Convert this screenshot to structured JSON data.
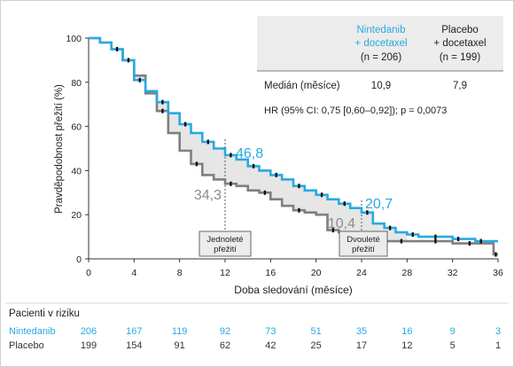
{
  "chart_data": {
    "type": "line",
    "title": "",
    "xlabel": "Doba sledování (měsíce)",
    "ylabel": "Pravděpodobnost přežití (%)",
    "xlim": [
      0,
      36
    ],
    "ylim": [
      0,
      100
    ],
    "xticks": [
      "0",
      "4",
      "8",
      "12",
      "16",
      "20",
      "24",
      "28",
      "32",
      "36"
    ],
    "yticks": [
      "0",
      "20",
      "40",
      "60",
      "80",
      "100"
    ],
    "series": [
      {
        "name": "Nintedanib + docetaxel",
        "color": "#29a9e1",
        "points": [
          [
            0,
            100
          ],
          [
            1,
            98
          ],
          [
            2,
            95
          ],
          [
            3,
            90
          ],
          [
            4,
            81
          ],
          [
            5,
            76
          ],
          [
            6,
            71
          ],
          [
            7,
            66
          ],
          [
            8,
            61
          ],
          [
            9,
            57
          ],
          [
            10,
            53
          ],
          [
            11,
            50
          ],
          [
            12,
            47
          ],
          [
            13,
            45
          ],
          [
            14,
            42
          ],
          [
            15,
            40
          ],
          [
            16,
            38
          ],
          [
            17,
            36
          ],
          [
            18,
            33
          ],
          [
            19,
            31
          ],
          [
            20,
            29
          ],
          [
            21,
            27
          ],
          [
            22,
            25
          ],
          [
            23,
            23
          ],
          [
            24,
            21
          ],
          [
            25,
            16
          ],
          [
            26,
            14
          ],
          [
            27,
            12
          ],
          [
            28,
            11
          ],
          [
            29,
            10
          ],
          [
            30,
            10
          ],
          [
            31,
            10
          ],
          [
            32,
            9
          ],
          [
            33,
            9
          ],
          [
            34,
            8
          ],
          [
            35,
            8
          ],
          [
            36,
            8
          ]
        ]
      },
      {
        "name": "Placebo",
        "color": "#7f7f7f",
        "points": [
          [
            0,
            100
          ],
          [
            1,
            98
          ],
          [
            2,
            95
          ],
          [
            3,
            90
          ],
          [
            4,
            83
          ],
          [
            5,
            75
          ],
          [
            6,
            67
          ],
          [
            7,
            57
          ],
          [
            8,
            49
          ],
          [
            9,
            43
          ],
          [
            10,
            38
          ],
          [
            11,
            36
          ],
          [
            12,
            34
          ],
          [
            13,
            33
          ],
          [
            14,
            31
          ],
          [
            15,
            30
          ],
          [
            16,
            27
          ],
          [
            17,
            24
          ],
          [
            18,
            22
          ],
          [
            19,
            21
          ],
          [
            20,
            20
          ],
          [
            21,
            13
          ],
          [
            22,
            12
          ],
          [
            23,
            11
          ],
          [
            24,
            10
          ],
          [
            25,
            9
          ],
          [
            26,
            8
          ],
          [
            27,
            8
          ],
          [
            28,
            8
          ],
          [
            29,
            8
          ],
          [
            30,
            8
          ],
          [
            31,
            8
          ],
          [
            32,
            7
          ],
          [
            33,
            7
          ],
          [
            34,
            7
          ],
          [
            35,
            7
          ],
          [
            35.6,
            2
          ],
          [
            36,
            2
          ]
        ]
      }
    ],
    "annotations": [
      {
        "text": "46,8",
        "x": 12,
        "y": 46.8,
        "series": 0
      },
      {
        "text": "34,3",
        "x": 12,
        "y": 34.3,
        "series": 1
      },
      {
        "text": "20,7",
        "x": 24,
        "y": 20.7,
        "series": 0
      },
      {
        "text": "10,4",
        "x": 24,
        "y": 10.4,
        "series": 1
      }
    ],
    "marker_boxes": [
      {
        "x": 12,
        "lines": [
          "Jednoleté",
          "přežití"
        ]
      },
      {
        "x": 24,
        "lines": [
          "Dvouleté",
          "přežití"
        ]
      }
    ]
  },
  "stats_table": {
    "header_col1": [
      "Nintedanib",
      "+ docetaxel",
      "(n = 206)"
    ],
    "header_col2": [
      "Placebo",
      "+ docetaxel",
      "(n = 199)"
    ],
    "median_label": "Medián (měsíce)",
    "median_values": [
      "10,9",
      "7,9"
    ],
    "hr_text": "HR (95% CI: 0,75 [0,60–0,92]); p = 0,0073"
  },
  "risk_table": {
    "title": "Pacienti v riziku",
    "rows": [
      {
        "label": "Nintedanib",
        "color": "#29a9e1",
        "values": [
          "206",
          "167",
          "119",
          "92",
          "73",
          "51",
          "35",
          "16",
          "9",
          "3"
        ]
      },
      {
        "label": "Placebo",
        "color": "#333333",
        "values": [
          "199",
          "154",
          "91",
          "62",
          "42",
          "25",
          "17",
          "12",
          "5",
          "1"
        ]
      }
    ]
  },
  "colors": {
    "nintedanib": "#29a9e1",
    "placebo": "#7f7f7f",
    "fill": "#e6e6e6",
    "table_bg": "#ececec"
  }
}
